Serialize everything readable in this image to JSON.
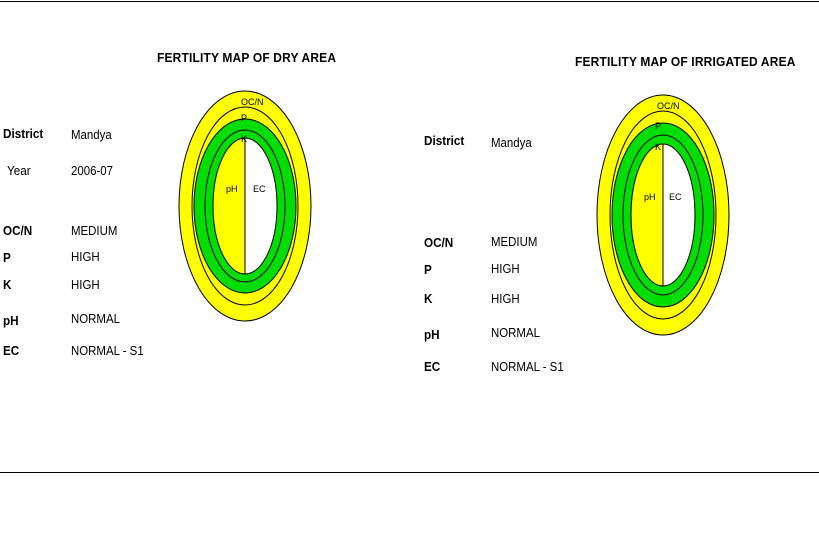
{
  "dry": {
    "title": "FERTILITY MAP OF DRY AREA",
    "fields": [
      {
        "label": "District",
        "value": "Mandya"
      },
      {
        "label": "Year",
        "value": "2006-07"
      },
      {
        "label": "OC/N",
        "value": "MEDIUM"
      },
      {
        "label": "P",
        "value": "HIGH"
      },
      {
        "label": "K",
        "value": "HIGH"
      },
      {
        "label": "pH",
        "value": "NORMAL"
      },
      {
        "label": "EC",
        "value": "NORMAL - S1"
      }
    ],
    "rings": {
      "ocn": "OC/N",
      "p": "P",
      "k": "K",
      "ph": "pH",
      "ec": "EC"
    }
  },
  "irrigated": {
    "title": "FERTILITY MAP OF IRRIGATED AREA",
    "fields": [
      {
        "label": "District",
        "value": "Mandya"
      },
      {
        "label": "OC/N",
        "value": "MEDIUM"
      },
      {
        "label": "P",
        "value": "HIGH"
      },
      {
        "label": "K",
        "value": "HIGH"
      },
      {
        "label": "pH",
        "value": "NORMAL"
      },
      {
        "label": "EC",
        "value": "NORMAL - S1"
      }
    ],
    "rings": {
      "ocn": "OC/N",
      "p": "P",
      "k": "K",
      "ph": "pH",
      "ec": "EC"
    }
  },
  "colors": {
    "medium": "#ffff00",
    "high": "#00dd00",
    "normal": "#ffff00",
    "ec_normal": "#ffffff"
  }
}
